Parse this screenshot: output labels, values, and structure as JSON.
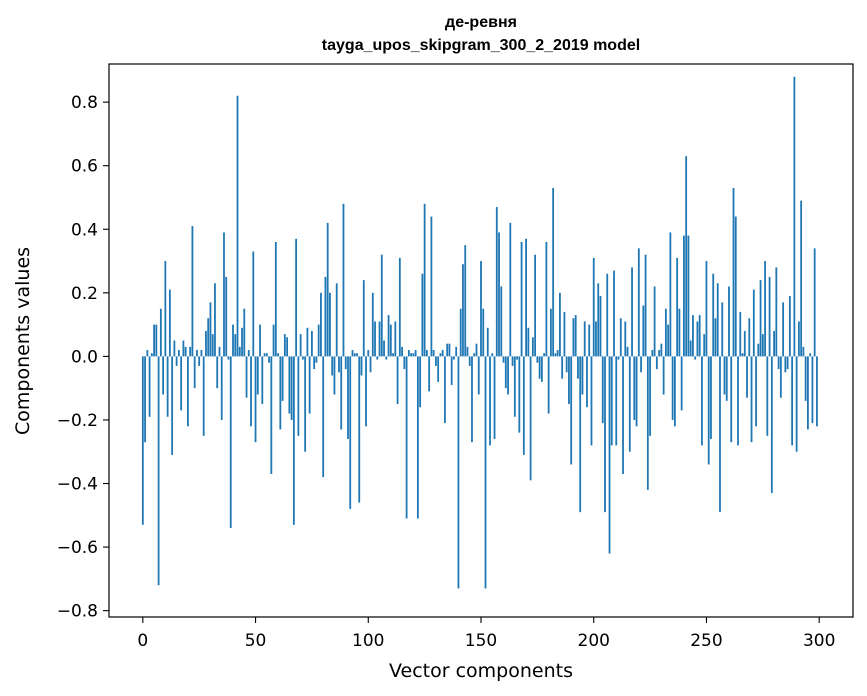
{
  "chart_data": {
    "type": "bar",
    "title_line1": "де-ревня",
    "title_line2": "tayga_upos_skipgram_300_2_2019 model",
    "xlabel": "Vector components",
    "ylabel": "Components values",
    "xlim": [
      -15,
      315
    ],
    "ylim": [
      -0.82,
      0.92
    ],
    "grid": false,
    "bar_color": "#1f77b4",
    "x_ticks": [
      {
        "value": 0,
        "label": "0"
      },
      {
        "value": 50,
        "label": "50"
      },
      {
        "value": 100,
        "label": "100"
      },
      {
        "value": 150,
        "label": "150"
      },
      {
        "value": 200,
        "label": "200"
      },
      {
        "value": 250,
        "label": "250"
      },
      {
        "value": 300,
        "label": "300"
      }
    ],
    "y_ticks": [
      {
        "value": -0.8,
        "label": "−0.8"
      },
      {
        "value": -0.6,
        "label": "−0.6"
      },
      {
        "value": -0.4,
        "label": "−0.4"
      },
      {
        "value": -0.2,
        "label": "−0.2"
      },
      {
        "value": 0.0,
        "label": "0.0"
      },
      {
        "value": 0.2,
        "label": "0.2"
      },
      {
        "value": 0.4,
        "label": "0.4"
      },
      {
        "value": 0.6,
        "label": "0.6"
      },
      {
        "value": 0.8,
        "label": "0.8"
      }
    ],
    "values": [
      -0.53,
      -0.27,
      0.02,
      -0.19,
      0.01,
      0.1,
      0.1,
      -0.72,
      0.15,
      -0.12,
      0.3,
      -0.19,
      0.21,
      -0.31,
      0.05,
      -0.03,
      0.02,
      -0.17,
      0.05,
      0.03,
      -0.22,
      0.03,
      0.41,
      -0.1,
      0.02,
      -0.03,
      0.02,
      -0.25,
      0.08,
      0.12,
      0.17,
      0.07,
      0.23,
      -0.1,
      0.03,
      -0.2,
      0.39,
      0.25,
      -0.01,
      -0.54,
      0.1,
      0.07,
      0.82,
      0.03,
      0.09,
      0.15,
      -0.13,
      0.02,
      -0.22,
      0.33,
      -0.27,
      -0.12,
      0.1,
      -0.15,
      0.01,
      0.01,
      -0.02,
      -0.37,
      0.1,
      0.36,
      0.01,
      -0.23,
      -0.14,
      0.07,
      0.06,
      -0.18,
      -0.2,
      -0.53,
      0.37,
      -0.25,
      0.07,
      -0.01,
      -0.3,
      0.09,
      -0.18,
      0.08,
      -0.04,
      -0.02,
      0.1,
      0.2,
      -0.38,
      0.25,
      0.42,
      0.2,
      -0.06,
      -0.12,
      0.23,
      -0.05,
      -0.23,
      0.48,
      -0.04,
      -0.26,
      -0.48,
      0.02,
      0.01,
      0.01,
      -0.46,
      -0.06,
      0.24,
      -0.22,
      0.02,
      -0.05,
      0.2,
      0.11,
      -0.01,
      0.11,
      0.32,
      0.05,
      -0.01,
      0.13,
      0.1,
      0.01,
      0.11,
      -0.15,
      0.31,
      0.03,
      -0.04,
      -0.51,
      0.02,
      0.01,
      0.01,
      0.02,
      -0.51,
      -0.16,
      0.26,
      0.48,
      0.02,
      -0.11,
      0.44,
      0.02,
      -0.03,
      -0.08,
      0.01,
      0.02,
      -0.21,
      0.04,
      0.04,
      -0.09,
      -0.01,
      0.03,
      -0.73,
      0.15,
      0.29,
      0.35,
      0.03,
      -0.03,
      -0.27,
      0.01,
      0.04,
      -0.12,
      0.3,
      0.15,
      -0.73,
      0.09,
      -0.28,
      0.01,
      -0.26,
      0.47,
      0.39,
      0.22,
      -0.02,
      -0.1,
      -0.12,
      0.42,
      -0.03,
      -0.19,
      -0.01,
      -0.24,
      0.36,
      -0.31,
      0.37,
      0.09,
      -0.39,
      0.06,
      0.32,
      -0.02,
      -0.07,
      -0.08,
      0.01,
      0.36,
      -0.18,
      0.15,
      0.53,
      0.01,
      0.02,
      0.2,
      -0.07,
      0.14,
      -0.05,
      -0.15,
      -0.34,
      0.12,
      0.13,
      -0.07,
      -0.49,
      -0.12,
      0.11,
      -0.16,
      0.1,
      -0.28,
      0.31,
      0.11,
      0.23,
      0.19,
      -0.21,
      -0.49,
      0.26,
      -0.62,
      -0.28,
      0.27,
      -0.28,
      -0.01,
      0.12,
      -0.37,
      0.11,
      0.03,
      -0.3,
      0.28,
      -0.2,
      -0.22,
      0.34,
      -0.05,
      0.16,
      0.32,
      -0.42,
      -0.25,
      0.02,
      0.22,
      -0.04,
      0.02,
      0.04,
      -0.12,
      0.15,
      0.1,
      0.39,
      -0.2,
      -0.22,
      0.31,
      0.15,
      -0.17,
      0.38,
      0.63,
      0.38,
      0.05,
      0.13,
      -0.01,
      0.11,
      0.13,
      -0.28,
      0.07,
      0.3,
      -0.34,
      -0.26,
      0.26,
      0.12,
      0.23,
      -0.49,
      0.17,
      -0.12,
      -0.14,
      0.22,
      -0.27,
      0.53,
      0.44,
      -0.28,
      0.14,
      0.01,
      0.08,
      -0.13,
      0.12,
      -0.27,
      0.21,
      -0.22,
      0.04,
      0.24,
      0.07,
      0.3,
      -0.25,
      0.25,
      -0.43,
      0.08,
      0.28,
      -0.04,
      -0.13,
      0.17,
      -0.05,
      -0.04,
      0.19,
      -0.28,
      0.88,
      -0.3,
      0.11,
      0.49,
      0.03,
      -0.14,
      -0.23,
      0.01,
      -0.21,
      0.34,
      -0.22
    ]
  }
}
